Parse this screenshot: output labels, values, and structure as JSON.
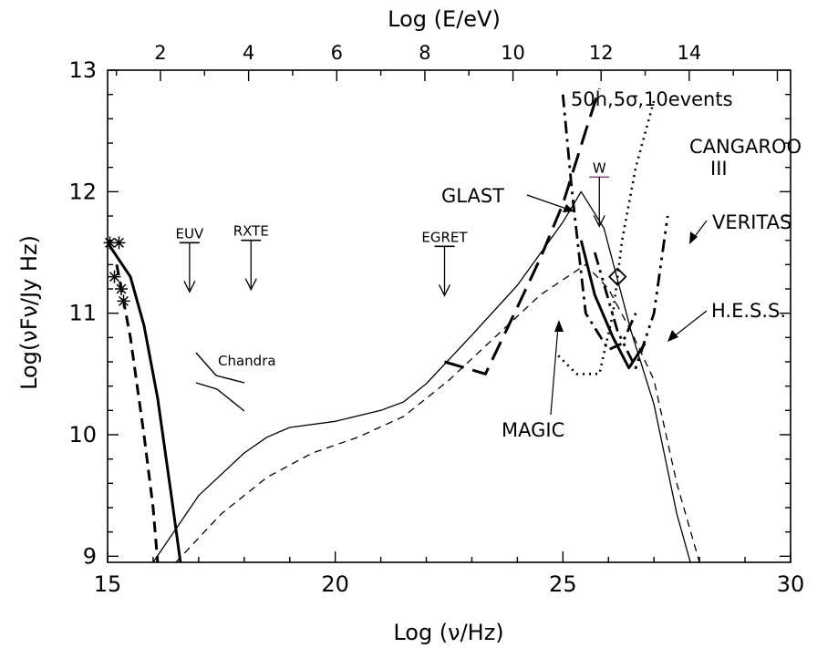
{
  "chart_data": {
    "type": "line",
    "title": "",
    "xlabel": "Log (ν/Hz)",
    "ylabel": "Log(νFν/Jy Hz)",
    "x2label": "Log (E/eV)",
    "xlim": [
      15,
      30
    ],
    "ylim": [
      8.95,
      13
    ],
    "x2lim": [
      0.8,
      16.3
    ],
    "xticks": [
      15,
      20,
      25,
      30
    ],
    "yticks": [
      9,
      10,
      11,
      12,
      13
    ],
    "x2ticks": [
      2,
      4,
      6,
      8,
      10,
      12,
      14
    ],
    "grid": false,
    "legend": "none",
    "series": [
      {
        "style": "thick-solid",
        "points": [
          [
            15,
            11.58
          ],
          [
            15.5,
            11.3
          ],
          [
            15.8,
            10.9
          ],
          [
            16.1,
            10.3
          ],
          [
            16.4,
            9.5
          ],
          [
            16.6,
            8.95
          ]
        ]
      },
      {
        "style": "thick-dashed",
        "points": [
          [
            15.2,
            11.4
          ],
          [
            15.5,
            10.8
          ],
          [
            15.8,
            10.0
          ],
          [
            16.0,
            9.4
          ],
          [
            16.1,
            8.95
          ]
        ]
      },
      {
        "style": "thin-solid",
        "points": [
          [
            16.0,
            8.95
          ],
          [
            17.0,
            9.5
          ],
          [
            18.0,
            9.85
          ],
          [
            18.5,
            9.98
          ],
          [
            19.0,
            10.06
          ],
          [
            20.0,
            10.11
          ],
          [
            21.0,
            10.2
          ],
          [
            21.5,
            10.27
          ],
          [
            22.0,
            10.42
          ],
          [
            23.0,
            10.82
          ],
          [
            24.0,
            11.23
          ],
          [
            25.0,
            11.75
          ],
          [
            25.4,
            12.0
          ],
          [
            25.9,
            11.7
          ],
          [
            26.5,
            10.85
          ],
          [
            27.0,
            10.25
          ],
          [
            27.5,
            9.35
          ],
          [
            27.8,
            8.95
          ]
        ]
      },
      {
        "style": "thin-dashed",
        "points": [
          [
            16.5,
            8.95
          ],
          [
            17.5,
            9.35
          ],
          [
            18.5,
            9.65
          ],
          [
            19.5,
            9.85
          ],
          [
            20.5,
            9.98
          ],
          [
            21.5,
            10.15
          ],
          [
            22.5,
            10.45
          ],
          [
            23.5,
            10.8
          ],
          [
            24.5,
            11.15
          ],
          [
            25.5,
            11.4
          ],
          [
            26.0,
            11.2
          ],
          [
            26.5,
            10.85
          ],
          [
            27.0,
            10.45
          ],
          [
            27.5,
            9.6
          ],
          [
            28.0,
            8.95
          ]
        ]
      }
    ],
    "sensitivity_curves": [
      {
        "name": "GLAST",
        "style": "long-dash",
        "points": [
          [
            22.4,
            10.6
          ],
          [
            23.3,
            10.5
          ],
          [
            24.0,
            11.05
          ],
          [
            24.5,
            11.45
          ],
          [
            25.0,
            11.9
          ],
          [
            25.5,
            12.5
          ],
          [
            25.8,
            12.85
          ]
        ]
      },
      {
        "name": "MAGIC",
        "style": "dash-dot",
        "points": [
          [
            25.0,
            12.8
          ],
          [
            25.2,
            12.0
          ],
          [
            25.5,
            11.0
          ],
          [
            26.0,
            10.7
          ],
          [
            26.3,
            10.75
          ],
          [
            26.6,
            11.0
          ]
        ]
      },
      {
        "name": "CANGAROO III",
        "style": "dotted",
        "points": [
          [
            24.9,
            10.65
          ],
          [
            25.3,
            10.5
          ],
          [
            25.8,
            10.5
          ],
          [
            26.1,
            11.0
          ],
          [
            26.3,
            11.6
          ],
          [
            26.6,
            12.2
          ],
          [
            27.0,
            12.75
          ]
        ]
      },
      {
        "name": "VERITAS",
        "style": "dash-dot-dot",
        "points": [
          [
            25.7,
            11.5
          ],
          [
            26.2,
            10.85
          ],
          [
            26.6,
            10.55
          ],
          [
            27.0,
            11.0
          ],
          [
            27.3,
            11.8
          ]
        ]
      },
      {
        "name": "H.E.S.S.",
        "style": "thick-solid",
        "points": [
          [
            25.4,
            11.6
          ],
          [
            25.7,
            11.15
          ],
          [
            26.1,
            10.8
          ],
          [
            26.45,
            10.55
          ],
          [
            26.8,
            10.75
          ]
        ]
      }
    ],
    "upper_limits": [
      {
        "label": "EUV",
        "x": 16.8,
        "y": 11.58
      },
      {
        "label": "RXTE",
        "x": 18.15,
        "y": 11.6
      },
      {
        "label": "EGRET",
        "x": 22.4,
        "y": 11.55
      },
      {
        "label": "W",
        "x": 25.8,
        "y": 12.12
      }
    ],
    "stars": [
      [
        15.05,
        11.58
      ],
      [
        15.25,
        11.58
      ],
      [
        15.15,
        11.3
      ],
      [
        15.3,
        11.2
      ],
      [
        15.35,
        11.1
      ]
    ],
    "diamond": [
      26.2,
      11.3
    ],
    "chandra": {
      "label": "Chandra"
    },
    "annotations": {
      "glast": "GLAST",
      "magic": "MAGIC",
      "cangaroo_1": "CANGAROO",
      "cangaroo_2": "III",
      "veritas": "VERITAS",
      "hess": "H.E.S.S.",
      "sensitivity": "50h,5σ,10events"
    }
  }
}
